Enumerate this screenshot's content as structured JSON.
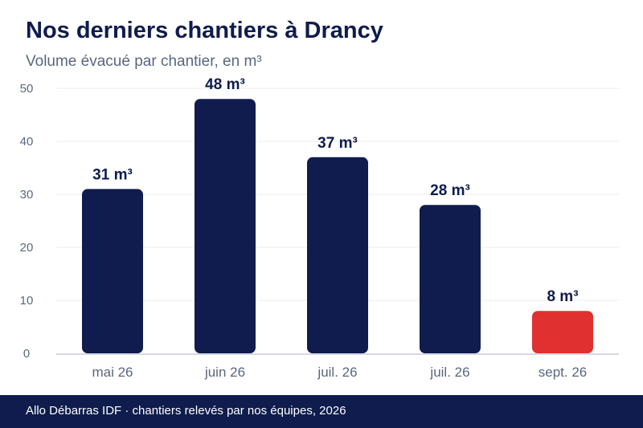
{
  "title": "Nos derniers chantiers à Drancy",
  "subtitle": "Volume évacué par chantier, en m³",
  "footer": "Allo Débarras IDF · chantiers relevés par nos équipes, 2026",
  "colors": {
    "primary": "#0f1c4d",
    "highlight": "#e03030",
    "axis_text": "#5a6680"
  },
  "chart_data": {
    "type": "bar",
    "categories": [
      "mai 26",
      "juin 26",
      "juil. 26",
      "juil. 26",
      "sept. 26"
    ],
    "values": [
      31,
      48,
      37,
      28,
      8
    ],
    "data_labels": [
      "31 m³",
      "48 m³",
      "37 m³",
      "28 m³",
      "8 m³"
    ],
    "highlight_index": 4,
    "yticks": [
      "0",
      "10",
      "20",
      "30",
      "40",
      "50"
    ],
    "ylim": [
      0,
      50
    ],
    "grid": true,
    "xlabel": "",
    "ylabel": ""
  }
}
